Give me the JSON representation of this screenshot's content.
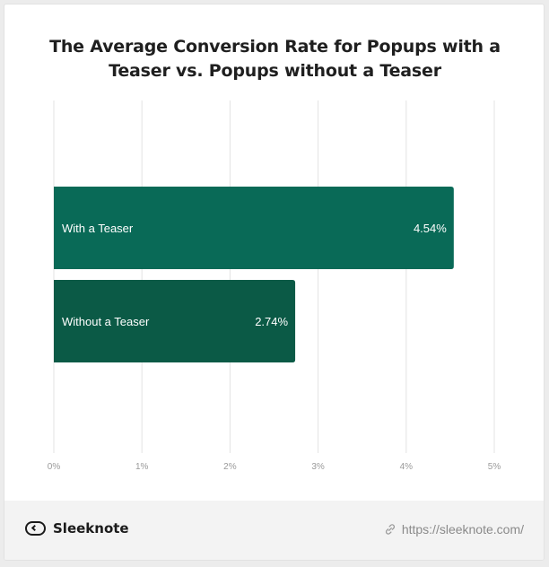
{
  "chart_data": {
    "type": "bar",
    "orientation": "horizontal",
    "title": "The Average Conversion Rate for Popups with a Teaser vs. Popups without a Teaser",
    "title_lines": [
      "The Average Conversion Rate for Popups with a",
      "Teaser vs. Popups without a Teaser"
    ],
    "categories": [
      "With a Teaser",
      "Without a Teaser"
    ],
    "values": [
      4.54,
      2.74
    ],
    "value_labels": [
      "4.54%",
      "2.74%"
    ],
    "bar_colors": [
      "#096a57",
      "#0b5a46"
    ],
    "xlim": [
      0,
      5
    ],
    "x_ticks": [
      0,
      1,
      2,
      3,
      4,
      5
    ],
    "x_tick_labels": [
      "0%",
      "1%",
      "2%",
      "3%",
      "4%",
      "5%"
    ],
    "xlabel": "",
    "ylabel": "",
    "grid": true,
    "legend": "none"
  },
  "footer": {
    "brand_name": "Sleeknote",
    "url": "https://sleeknote.com/"
  },
  "icons": {
    "brand": "sleeknote-logo-icon",
    "link": "link-icon"
  }
}
